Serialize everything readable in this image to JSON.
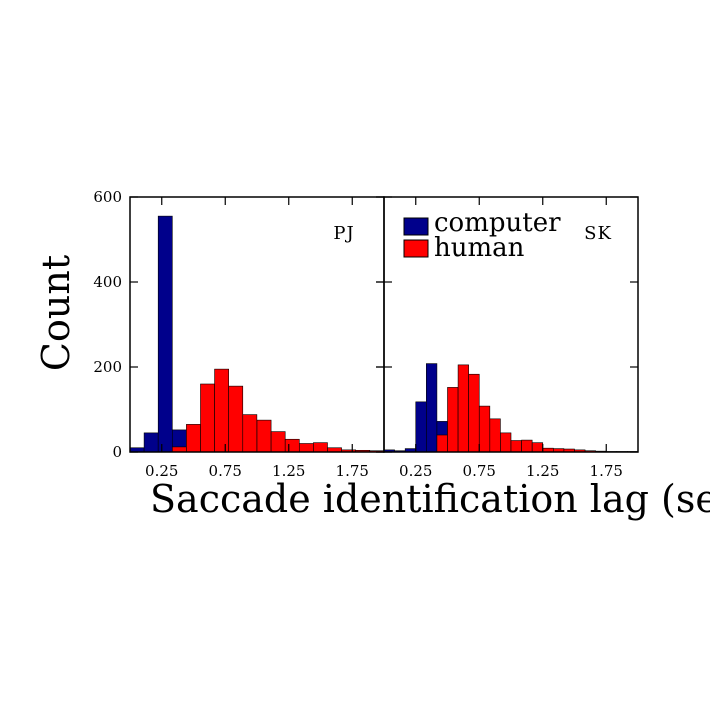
{
  "chart_data": [
    {
      "type": "bar",
      "panel_label": "PJ",
      "xlabel": "Saccade identification lag (sec)",
      "ylabel": "Count",
      "xlim": [
        0,
        2.0
      ],
      "ylim": [
        0,
        600
      ],
      "xticks": [
        "0.25",
        "0.75",
        "1.25",
        "1.75"
      ],
      "yticks": [
        "0",
        "200",
        "400",
        "600"
      ],
      "bin_width": 0.111,
      "series": [
        {
          "name": "computer",
          "color": "#00008b",
          "bin_starts": [
            0.0,
            0.111,
            0.222,
            0.333,
            0.444,
            0.555,
            0.666,
            0.777,
            0.888,
            1.0,
            1.111,
            1.222,
            1.333,
            1.444,
            1.555,
            1.666,
            1.777,
            1.888
          ],
          "values": [
            10,
            45,
            555,
            52,
            5,
            2,
            2,
            1,
            1,
            1,
            1,
            1,
            1,
            1,
            1,
            1,
            1,
            1
          ]
        },
        {
          "name": "human",
          "color": "#ff0000",
          "bin_starts": [
            0.0,
            0.111,
            0.222,
            0.333,
            0.444,
            0.555,
            0.666,
            0.777,
            0.888,
            1.0,
            1.111,
            1.222,
            1.333,
            1.444,
            1.555,
            1.666,
            1.777,
            1.888
          ],
          "values": [
            0,
            0,
            0,
            12,
            65,
            160,
            195,
            155,
            88,
            75,
            48,
            30,
            20,
            22,
            10,
            5,
            4,
            3
          ]
        }
      ]
    },
    {
      "type": "bar",
      "panel_label": "SK",
      "xlabel": "Saccade identification lag (sec)",
      "ylabel": "Count",
      "xlim": [
        0,
        2.0
      ],
      "ylim": [
        0,
        600
      ],
      "xticks": [
        "0.25",
        "0.75",
        "1.25",
        "1.75"
      ],
      "yticks": [
        "0",
        "200",
        "400",
        "600"
      ],
      "bin_width": 0.0833,
      "series": [
        {
          "name": "computer",
          "color": "#00008b",
          "bin_starts": [
            0.0,
            0.0833,
            0.1667,
            0.25,
            0.3333,
            0.4167,
            0.5,
            0.5833,
            0.6667,
            0.75,
            0.8333,
            0.9167,
            1.0,
            1.0833,
            1.1667,
            1.25,
            1.3333,
            1.4167,
            1.5,
            1.5833,
            1.6667,
            1.75,
            1.8333,
            1.9167
          ],
          "values": [
            5,
            3,
            8,
            118,
            208,
            72,
            25,
            5,
            5,
            2,
            1,
            1,
            1,
            1,
            1,
            1,
            1,
            1,
            1,
            1,
            1,
            1,
            1,
            1
          ]
        },
        {
          "name": "human",
          "color": "#ff0000",
          "bin_starts": [
            0.0,
            0.0833,
            0.1667,
            0.25,
            0.3333,
            0.4167,
            0.5,
            0.5833,
            0.6667,
            0.75,
            0.8333,
            0.9167,
            1.0,
            1.0833,
            1.1667,
            1.25,
            1.3333,
            1.4167,
            1.5,
            1.5833,
            1.6667,
            1.75,
            1.8333,
            1.9167
          ],
          "values": [
            0,
            0,
            0,
            0,
            0,
            40,
            152,
            205,
            183,
            108,
            78,
            45,
            27,
            28,
            22,
            9,
            8,
            7,
            5,
            3,
            2,
            1,
            1,
            1
          ]
        }
      ]
    }
  ],
  "legend": {
    "placement": "top-left of right panel",
    "items": [
      {
        "label": "computer",
        "color": "#00008b"
      },
      {
        "label": "human",
        "color": "#ff0000"
      }
    ]
  }
}
